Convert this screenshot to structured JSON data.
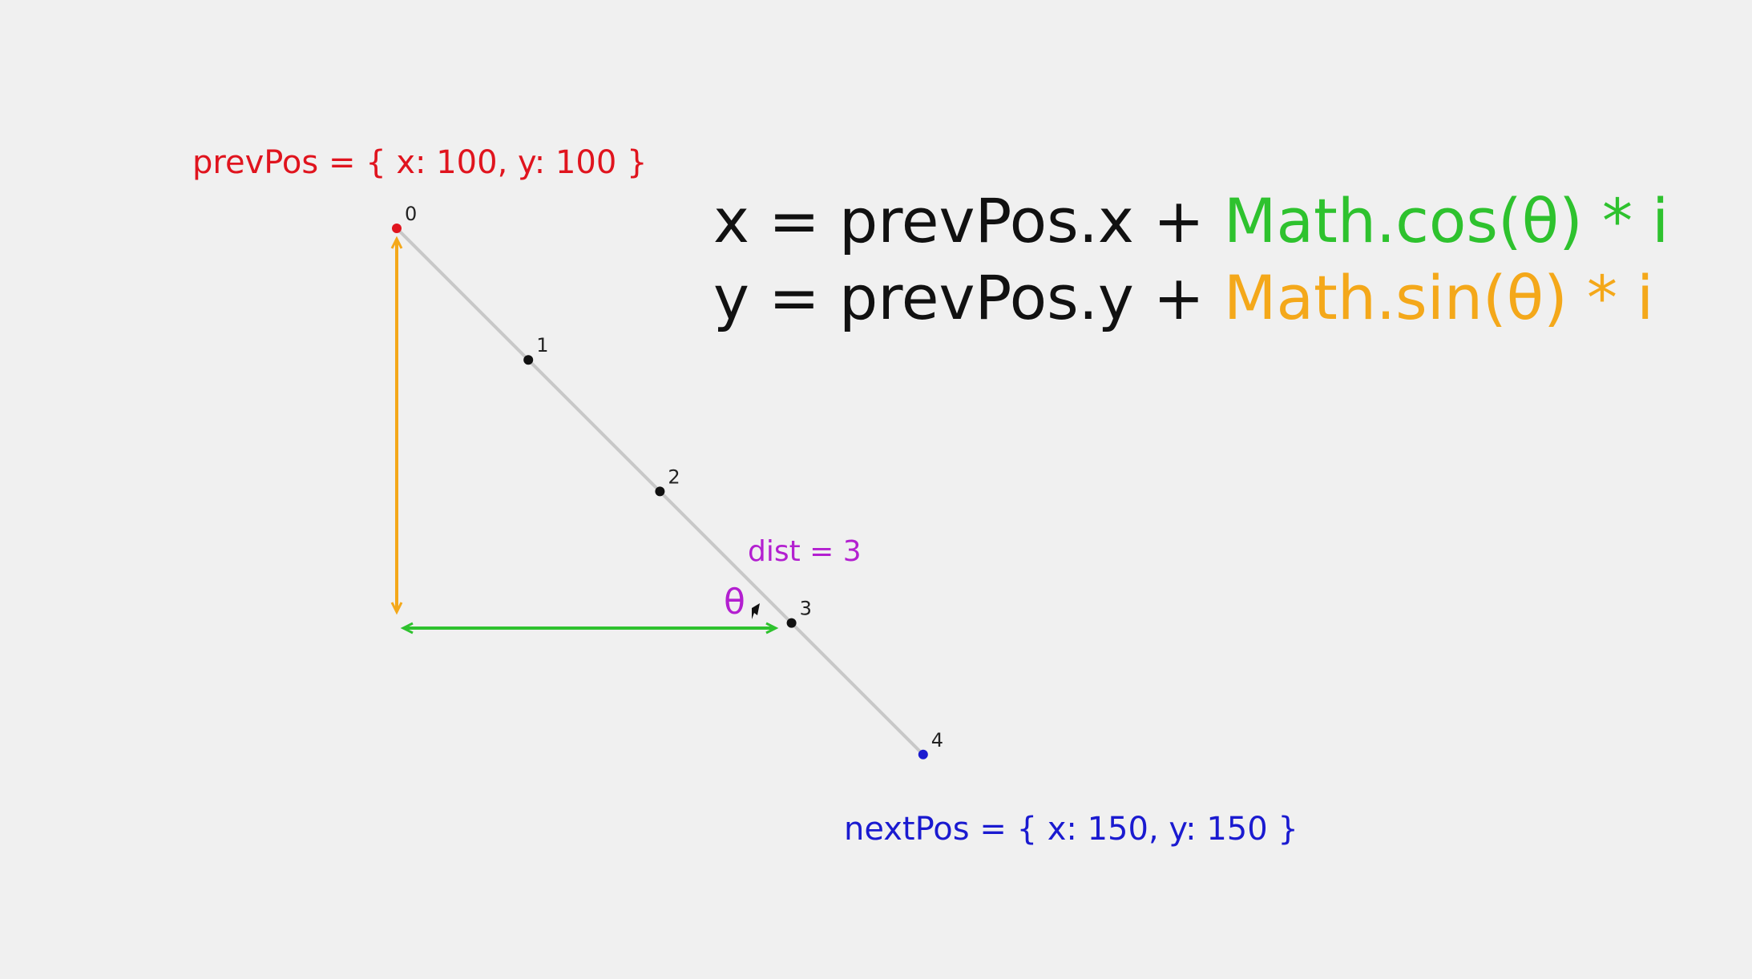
{
  "colors": {
    "background": "#f0f0f0",
    "prev": "#e0141e",
    "next": "#1a1ad0",
    "cos": "#2ec22e",
    "sin": "#f4a81a",
    "dist": "#b31fd0",
    "text": "#111111",
    "path_line": "#c8c8c8",
    "point": "#111111"
  },
  "prev_label": "prevPos = { x: 100, y: 100 }",
  "next_label": "nextPos = { x: 150, y: 150 }",
  "dist_label": "dist = 3",
  "theta_symbol": "θ",
  "equations": [
    {
      "lhs": "x = prevPos.x + ",
      "func": "Math.cos(θ)",
      "func_color": "cos",
      "rhs": " * i"
    },
    {
      "lhs": "y = prevPos.y + ",
      "func": "Math.sin(θ)",
      "func_color": "sin",
      "rhs": " * i"
    }
  ],
  "points": [
    {
      "label": "0",
      "i": 0,
      "kind": "prev"
    },
    {
      "label": "1",
      "i": 1,
      "kind": "step"
    },
    {
      "label": "2",
      "i": 2,
      "kind": "step"
    },
    {
      "label": "3",
      "i": 3,
      "kind": "step"
    },
    {
      "label": "4",
      "i": 4,
      "kind": "next"
    }
  ],
  "icons": {
    "cursor": "mouse-cursor-icon"
  }
}
